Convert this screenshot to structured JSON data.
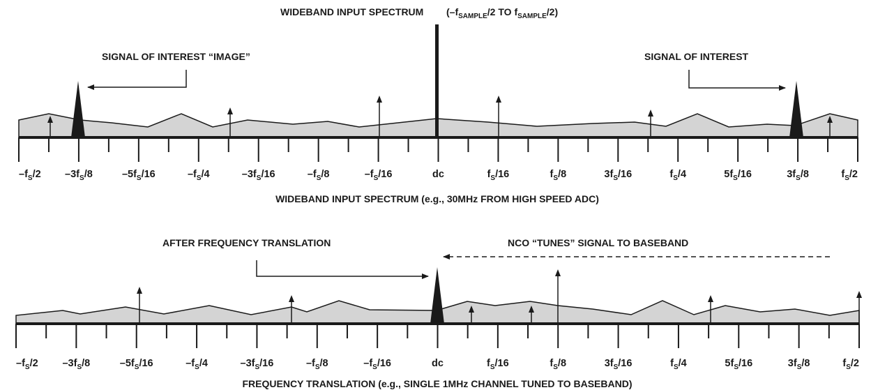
{
  "top_panel": {
    "heading": "WIDEBAND INPUT SPECTRUM",
    "heading_range": {
      "open": "(–f",
      "sub1": "SAMPLE",
      "mid": "/2 TO f",
      "sub2": "SAMPLE",
      "close": "/2)"
    },
    "image_label": "SIGNAL OF INTEREST “IMAGE”",
    "signal_label": "SIGNAL OF INTEREST",
    "caption": "WIDEBAND INPUT SPECTRUM (e.g., 30MHz FROM HIGH SPEED ADC)"
  },
  "bottom_panel": {
    "translation_label": "AFTER FREQUENCY TRANSLATION",
    "nco_label": "NCO “TUNES” SIGNAL TO BASEBAND",
    "caption": "FREQUENCY TRANSLATION (e.g., SINGLE 1MHz CHANNEL TUNED TO BASEBAND)"
  },
  "axis_ticks": [
    {
      "pre": "–f",
      "sub": "S",
      "post": "/2"
    },
    {
      "pre": "–3f",
      "sub": "S",
      "post": "/8"
    },
    {
      "pre": "–5f",
      "sub": "S",
      "post": "/16"
    },
    {
      "pre": "–f",
      "sub": "S",
      "post": "/4"
    },
    {
      "pre": "–3f",
      "sub": "S",
      "post": "/16"
    },
    {
      "pre": "–f",
      "sub": "S",
      "post": "/8"
    },
    {
      "pre": "–f",
      "sub": "S",
      "post": "/16"
    },
    {
      "pre": "dc",
      "sub": "",
      "post": ""
    },
    {
      "pre": "f",
      "sub": "S",
      "post": "/16"
    },
    {
      "pre": "f",
      "sub": "S",
      "post": "/8"
    },
    {
      "pre": "3f",
      "sub": "S",
      "post": "/16"
    },
    {
      "pre": "f",
      "sub": "S",
      "post": "/4"
    },
    {
      "pre": "5f",
      "sub": "S",
      "post": "/16"
    },
    {
      "pre": "3f",
      "sub": "S",
      "post": "/8"
    },
    {
      "pre": "f",
      "sub": "S",
      "post": "/2"
    }
  ],
  "colors": {
    "fill": "#d4d4d4",
    "ink": "#1a1a1a"
  }
}
